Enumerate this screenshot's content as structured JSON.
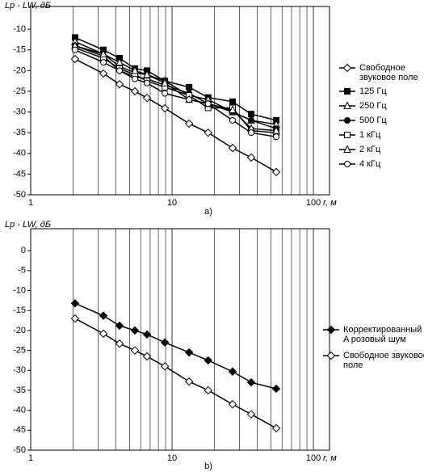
{
  "chart_data": [
    {
      "type": "line",
      "log_x": true,
      "grid": "x",
      "y_label": "Lp - LW, дБ",
      "x_label": "r, м",
      "caption": "a)",
      "xlim": [
        1,
        130
      ],
      "xticks": [
        1,
        10,
        100
      ],
      "ylim": [
        -50,
        -4.5
      ],
      "yticks": [
        -50,
        -45,
        -40,
        -35,
        -30,
        -25,
        -20,
        -15,
        -10
      ],
      "x": [
        2.06,
        3.27,
        4.25,
        5.46,
        6.65,
        8.9,
        13.2,
        18,
        26.8,
        36.3,
        54.6
      ],
      "series": [
        {
          "name": "Свободное звуковое поле",
          "color": "#000000",
          "marker": "diamond",
          "filled": false,
          "values": [
            -17.2,
            -20.7,
            -23.3,
            -25,
            -26.6,
            -29.1,
            -32.8,
            -35,
            -38.7,
            -41,
            -44.5
          ]
        },
        {
          "name": "125 Гц",
          "color": "#000000",
          "marker": "square",
          "filled": true,
          "values": [
            -12,
            -15,
            -17,
            -19.5,
            -20,
            -22.5,
            -24,
            -26.5,
            -27.5,
            -30.5,
            -32
          ]
        },
        {
          "name": "250 Гц",
          "color": "#000000",
          "marker": "triangle",
          "filled": false,
          "values": [
            -13,
            -16,
            -19,
            -20.5,
            -21,
            -22.5,
            -26,
            -27,
            -30,
            -32,
            -33
          ]
        },
        {
          "name": "500 Гц",
          "color": "#000000",
          "marker": "circle",
          "filled": true,
          "values": [
            -14,
            -16.5,
            -20,
            -21.5,
            -22,
            -23.5,
            -25.5,
            -28,
            -30,
            -32,
            -34
          ]
        },
        {
          "name": "1 кГц",
          "color": "#000000",
          "marker": "square",
          "filled": false,
          "values": [
            -14.5,
            -17,
            -19.5,
            -21,
            -22.5,
            -24,
            -26,
            -29,
            -29,
            -34.5,
            -35
          ]
        },
        {
          "name": "2 кГц",
          "color": "#000000",
          "marker": "triangle",
          "filled": false,
          "values": [
            -14,
            -16,
            -18,
            -20,
            -21,
            -23,
            -27,
            -28,
            -29.5,
            -34,
            -34.5
          ]
        },
        {
          "name": "4 кГц",
          "color": "#000000",
          "marker": "circle",
          "filled": false,
          "values": [
            -15,
            -18,
            -20,
            -22,
            -23,
            -25.5,
            -27,
            -28,
            -32,
            -35,
            -36
          ]
        }
      ]
    },
    {
      "type": "line",
      "log_x": true,
      "grid": "x",
      "y_label": "Lp - LW, дБ",
      "x_label": "r, м",
      "caption": "b)",
      "xlim": [
        1,
        130
      ],
      "xticks": [
        1,
        10,
        100
      ],
      "ylim": [
        -50,
        5.5
      ],
      "yticks": [
        -50,
        -45,
        -40,
        -35,
        -30,
        -25,
        -20,
        -15,
        -10,
        -5,
        0
      ],
      "x": [
        2.06,
        3.27,
        4.25,
        5.46,
        6.65,
        8.9,
        13.2,
        18,
        26.8,
        36.3,
        54.6
      ],
      "series": [
        {
          "name": "Корректированный по A розовый шум",
          "color": "#000000",
          "marker": "diamond",
          "filled": true,
          "values": [
            -13.2,
            -16.3,
            -18.8,
            -20,
            -21,
            -23,
            -25.5,
            -27.5,
            -30.3,
            -33,
            -34.6
          ]
        },
        {
          "name": "Свободное звуковое поле",
          "color": "#000000",
          "marker": "diamond",
          "filled": false,
          "values": [
            -17,
            -20.8,
            -23.3,
            -25,
            -26.5,
            -29,
            -32.8,
            -35,
            -38.5,
            -41,
            -44.5
          ]
        }
      ]
    }
  ]
}
